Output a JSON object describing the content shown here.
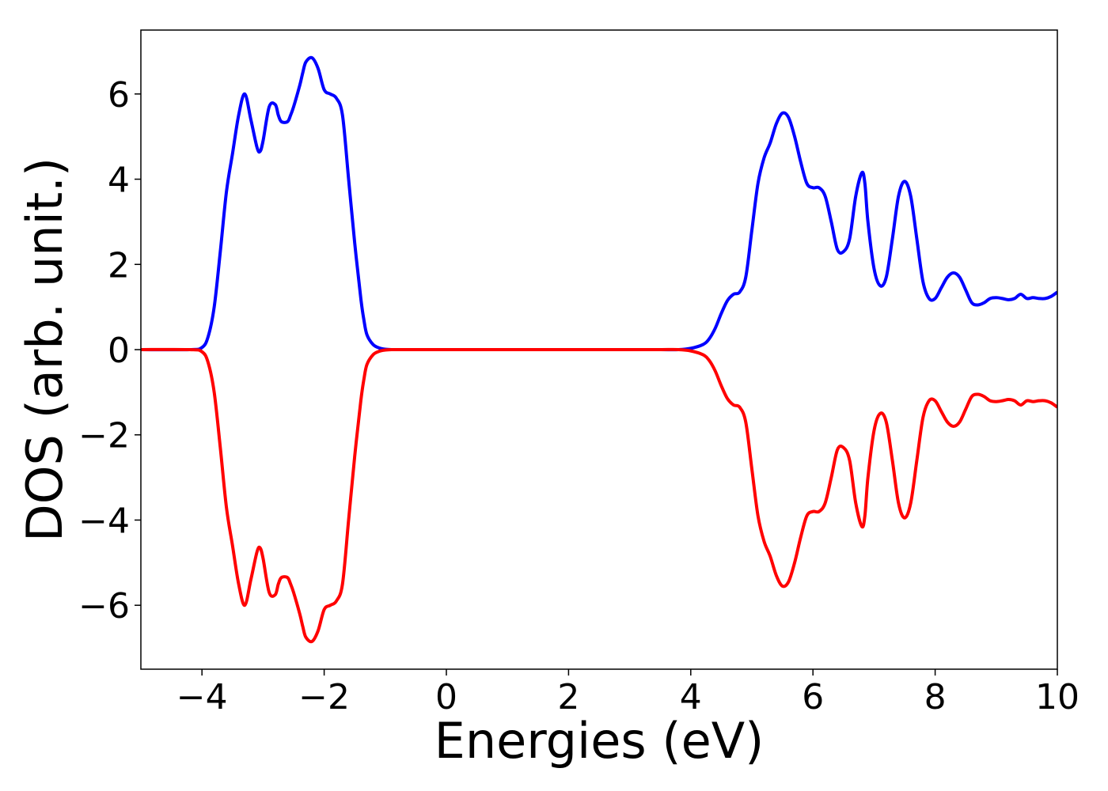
{
  "chart_data": {
    "type": "line",
    "title": "",
    "xlabel": "Energies (eV)",
    "ylabel": "DOS (arb. unit.)",
    "xlim": [
      -5,
      10
    ],
    "ylim": [
      -7.5,
      7.5
    ],
    "xticks": [
      -4,
      -2,
      0,
      2,
      4,
      6,
      8,
      10
    ],
    "yticks": [
      -6,
      -4,
      -2,
      0,
      2,
      4,
      6
    ],
    "xtick_labels": [
      "−4",
      "−2",
      "0",
      "2",
      "4",
      "6",
      "8",
      "10"
    ],
    "ytick_labels": [
      "−6",
      "−4",
      "−2",
      "0",
      "2",
      "4",
      "6"
    ],
    "grid": false,
    "legend": "none",
    "series": [
      {
        "color": "#0000ff",
        "x": [
          -5,
          -4.2,
          -4.0,
          -3.9,
          -3.8,
          -3.7,
          -3.6,
          -3.5,
          -3.4,
          -3.3,
          -3.2,
          -3.1,
          -3.05,
          -3.0,
          -2.9,
          -2.8,
          -2.75,
          -2.7,
          -2.6,
          -2.55,
          -2.5,
          -2.4,
          -2.35,
          -2.3,
          -2.2,
          -2.1,
          -2.0,
          -1.9,
          -1.8,
          -1.7,
          -1.6,
          -1.5,
          -1.4,
          -1.35,
          -1.3,
          -1.2,
          -1.1,
          -1.0,
          -0.9,
          -0.8,
          -0.7,
          -0.6,
          -0.5,
          0,
          1,
          2,
          3,
          3.5,
          3.8,
          4.0,
          4.2,
          4.3,
          4.4,
          4.5,
          4.6,
          4.7,
          4.8,
          4.9,
          5.0,
          5.1,
          5.2,
          5.3,
          5.4,
          5.5,
          5.6,
          5.7,
          5.8,
          5.9,
          6.0,
          6.1,
          6.2,
          6.3,
          6.4,
          6.5,
          6.6,
          6.7,
          6.8,
          6.85,
          6.9,
          7.0,
          7.1,
          7.2,
          7.3,
          7.4,
          7.5,
          7.6,
          7.7,
          7.8,
          7.9,
          8.0,
          8.1,
          8.2,
          8.3,
          8.4,
          8.5,
          8.6,
          8.7,
          8.8,
          8.9,
          9.0,
          9.1,
          9.2,
          9.3,
          9.4,
          9.5,
          9.6,
          9.7,
          9.8,
          9.9,
          10.0
        ],
        "y": [
          0.0,
          0.0,
          0.05,
          0.3,
          1.0,
          2.3,
          3.7,
          4.6,
          5.5,
          6.0,
          5.4,
          4.75,
          4.65,
          4.9,
          5.7,
          5.75,
          5.5,
          5.35,
          5.35,
          5.5,
          5.7,
          6.2,
          6.5,
          6.75,
          6.85,
          6.6,
          6.1,
          6.0,
          5.9,
          5.5,
          4.0,
          2.5,
          1.2,
          0.7,
          0.35,
          0.12,
          0.04,
          0.01,
          0.0,
          0.0,
          0.0,
          0.0,
          0.0,
          0.0,
          0.0,
          0.0,
          0.0,
          0.0,
          0.0,
          0.03,
          0.12,
          0.25,
          0.5,
          0.85,
          1.15,
          1.3,
          1.35,
          1.7,
          2.8,
          3.9,
          4.5,
          4.85,
          5.3,
          5.55,
          5.45,
          5.0,
          4.4,
          3.9,
          3.8,
          3.8,
          3.6,
          3.0,
          2.35,
          2.3,
          2.6,
          3.6,
          4.15,
          3.9,
          3.0,
          1.9,
          1.5,
          1.7,
          2.6,
          3.6,
          3.95,
          3.6,
          2.6,
          1.6,
          1.2,
          1.2,
          1.45,
          1.7,
          1.8,
          1.7,
          1.4,
          1.1,
          1.05,
          1.1,
          1.2,
          1.22,
          1.2,
          1.17,
          1.2,
          1.3,
          1.2,
          1.22,
          1.2,
          1.2,
          1.25,
          1.35
        ]
      },
      {
        "color": "#ff0000",
        "x": [
          -5,
          -4.2,
          -4.0,
          -3.9,
          -3.8,
          -3.7,
          -3.6,
          -3.5,
          -3.4,
          -3.3,
          -3.2,
          -3.1,
          -3.05,
          -3.0,
          -2.9,
          -2.8,
          -2.75,
          -2.7,
          -2.6,
          -2.55,
          -2.5,
          -2.4,
          -2.35,
          -2.3,
          -2.2,
          -2.1,
          -2.0,
          -1.9,
          -1.8,
          -1.7,
          -1.6,
          -1.5,
          -1.4,
          -1.35,
          -1.3,
          -1.2,
          -1.1,
          -1.0,
          -0.9,
          -0.8,
          -0.7,
          -0.6,
          -0.5,
          0,
          1,
          2,
          3,
          3.5,
          3.8,
          4.0,
          4.2,
          4.3,
          4.4,
          4.5,
          4.6,
          4.7,
          4.8,
          4.9,
          5.0,
          5.1,
          5.2,
          5.3,
          5.4,
          5.5,
          5.6,
          5.7,
          5.8,
          5.9,
          6.0,
          6.1,
          6.2,
          6.3,
          6.4,
          6.5,
          6.6,
          6.7,
          6.8,
          6.85,
          6.9,
          7.0,
          7.1,
          7.2,
          7.3,
          7.4,
          7.5,
          7.6,
          7.7,
          7.8,
          7.9,
          8.0,
          8.1,
          8.2,
          8.3,
          8.4,
          8.5,
          8.6,
          8.7,
          8.8,
          8.9,
          9.0,
          9.1,
          9.2,
          9.3,
          9.4,
          9.5,
          9.6,
          9.7,
          9.8,
          9.9,
          10.0
        ],
        "y": [
          0.0,
          0.0,
          -0.05,
          -0.3,
          -1.0,
          -2.3,
          -3.7,
          -4.6,
          -5.5,
          -6.0,
          -5.4,
          -4.75,
          -4.65,
          -4.9,
          -5.7,
          -5.75,
          -5.5,
          -5.35,
          -5.35,
          -5.5,
          -5.7,
          -6.2,
          -6.5,
          -6.75,
          -6.85,
          -6.6,
          -6.1,
          -6.0,
          -5.9,
          -5.5,
          -4.0,
          -2.5,
          -1.2,
          -0.7,
          -0.35,
          -0.12,
          -0.04,
          -0.01,
          0.0,
          0.0,
          0.0,
          0.0,
          0.0,
          0.0,
          0.0,
          0.0,
          0.0,
          0.0,
          0.0,
          -0.03,
          -0.12,
          -0.25,
          -0.5,
          -0.85,
          -1.15,
          -1.3,
          -1.35,
          -1.7,
          -2.8,
          -3.9,
          -4.5,
          -4.85,
          -5.3,
          -5.55,
          -5.45,
          -5.0,
          -4.4,
          -3.9,
          -3.8,
          -3.8,
          -3.6,
          -3.0,
          -2.35,
          -2.3,
          -2.6,
          -3.6,
          -4.15,
          -3.9,
          -3.0,
          -1.9,
          -1.5,
          -1.7,
          -2.6,
          -3.6,
          -3.95,
          -3.6,
          -2.6,
          -1.6,
          -1.2,
          -1.2,
          -1.45,
          -1.7,
          -1.8,
          -1.7,
          -1.4,
          -1.1,
          -1.05,
          -1.1,
          -1.2,
          -1.22,
          -1.2,
          -1.17,
          -1.2,
          -1.3,
          -1.2,
          -1.22,
          -1.2,
          -1.2,
          -1.25,
          -1.35
        ]
      }
    ]
  }
}
